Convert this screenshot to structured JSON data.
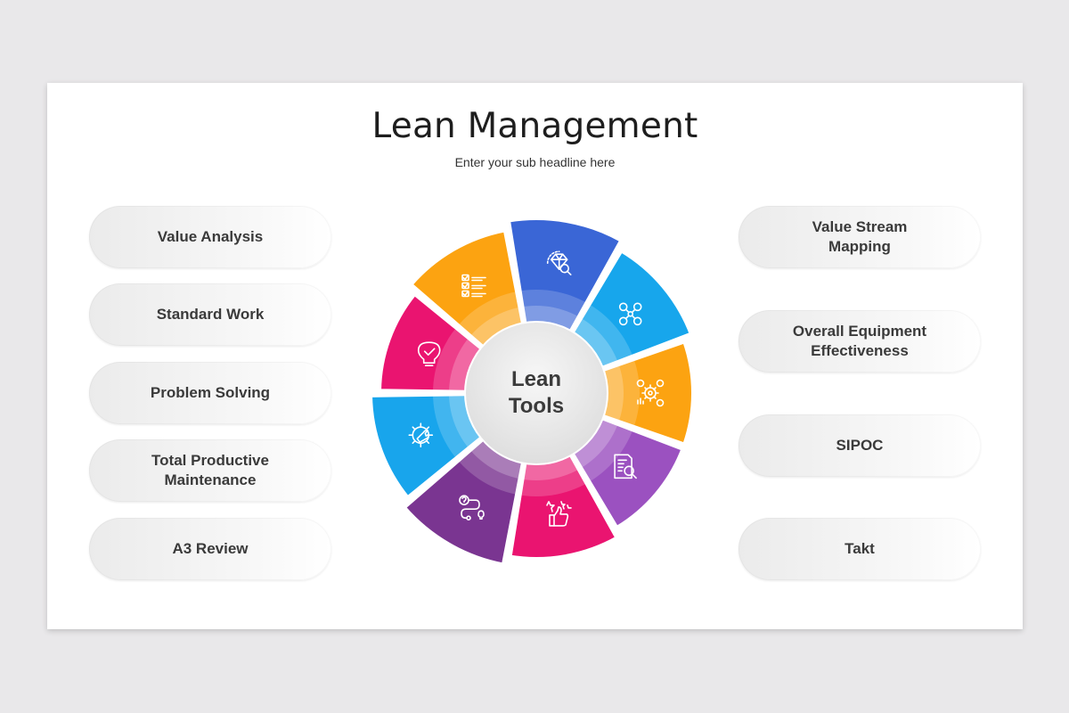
{
  "slide": {
    "title": "Lean Management",
    "subtitle": "Enter your sub headline here"
  },
  "left_items": [
    {
      "label": "Value Analysis"
    },
    {
      "label": "Standard Work"
    },
    {
      "label": "Problem Solving"
    },
    {
      "label": "Total Productive\nMaintenance"
    },
    {
      "label": "A3 Review"
    }
  ],
  "right_items": [
    {
      "label": "Value Stream\nMapping"
    },
    {
      "label": "Overall Equipment\nEffectiveness"
    },
    {
      "label": "SIPOC"
    },
    {
      "label": "Takt"
    }
  ],
  "wheel": {
    "center_label": "Lean\nTools",
    "segments": [
      {
        "icon": "diamond-search-icon",
        "color": "#3a66d6"
      },
      {
        "icon": "network-nodes-icon",
        "color": "#17a6ec"
      },
      {
        "icon": "gears-money-icon",
        "color": "#fca311"
      },
      {
        "icon": "document-search-icon",
        "color": "#9b51c0"
      },
      {
        "icon": "thumbs-up-stars-icon",
        "color": "#ea1470"
      },
      {
        "icon": "question-process-idea-icon",
        "color": "#7a3591"
      },
      {
        "icon": "gear-wrench-icon",
        "color": "#18a5ec"
      },
      {
        "icon": "lightbulb-check-icon",
        "color": "#ea1470"
      },
      {
        "icon": "checklist-icon",
        "color": "#fca311"
      }
    ]
  }
}
